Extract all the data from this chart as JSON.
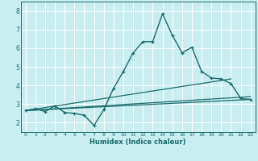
{
  "xlabel": "Humidex (Indice chaleur)",
  "bg_color": "#c8eef0",
  "grid_color": "#ffffff",
  "line_color": "#1a6b6b",
  "xlim": [
    -0.5,
    23.5
  ],
  "ylim": [
    1.5,
    8.5
  ],
  "xticks": [
    0,
    1,
    2,
    3,
    4,
    5,
    6,
    7,
    8,
    9,
    10,
    11,
    12,
    13,
    14,
    15,
    16,
    17,
    18,
    19,
    20,
    21,
    22,
    23
  ],
  "yticks": [
    2,
    3,
    4,
    5,
    6,
    7,
    8
  ],
  "line1_x": [
    0,
    1,
    2,
    3,
    4,
    5,
    6,
    7,
    8,
    9,
    10,
    11,
    12,
    13,
    14,
    15,
    16,
    17,
    18,
    19,
    20,
    21,
    22,
    23
  ],
  "line1_y": [
    2.65,
    2.75,
    2.6,
    2.9,
    2.55,
    2.5,
    2.4,
    1.85,
    2.7,
    3.85,
    4.75,
    5.75,
    6.35,
    6.35,
    7.85,
    6.7,
    5.75,
    6.05,
    4.75,
    4.4,
    4.35,
    4.1,
    3.3,
    3.25
  ],
  "line2_x": [
    0,
    23
  ],
  "line2_y": [
    2.65,
    3.25
  ],
  "line3_x": [
    0,
    21
  ],
  "line3_y": [
    2.65,
    4.35
  ],
  "line4_x": [
    0,
    23
  ],
  "line4_y": [
    2.65,
    3.4
  ]
}
